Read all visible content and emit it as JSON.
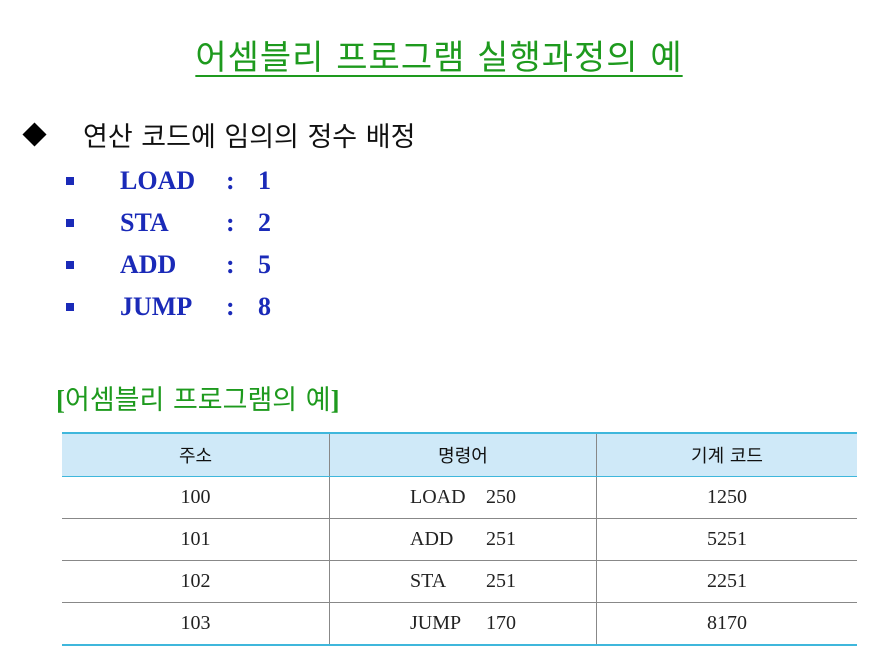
{
  "title": "어셈블리 프로그램 실행과정의 예",
  "heading": "연산 코드에 임의의 정수 배정",
  "opcodes": [
    {
      "name": "LOAD",
      "code": "1"
    },
    {
      "name": "STA",
      "code": "2"
    },
    {
      "name": "ADD",
      "code": "5"
    },
    {
      "name": "JUMP",
      "code": "8"
    }
  ],
  "colon": ":",
  "example": {
    "open": "[",
    "title": "어셈블리 프로그램의 예",
    "close": "]"
  },
  "table": {
    "headers": [
      "주소",
      "명령어",
      "기계 코드"
    ],
    "rows": [
      {
        "address": "100",
        "op": "LOAD",
        "operand": "250",
        "machine": "1250"
      },
      {
        "address": "101",
        "op": "ADD",
        "operand": "251",
        "machine": "5251"
      },
      {
        "address": "102",
        "op": "STA",
        "operand": "251",
        "machine": "2251"
      },
      {
        "address": "103",
        "op": "JUMP",
        "operand": "170",
        "machine": "8170"
      }
    ]
  },
  "colors": {
    "title_green": "#1e9a1e",
    "opcode_blue": "#1a2ab8",
    "table_header_bg": "#cfe9f8",
    "table_rule": "#3fb7dc"
  }
}
